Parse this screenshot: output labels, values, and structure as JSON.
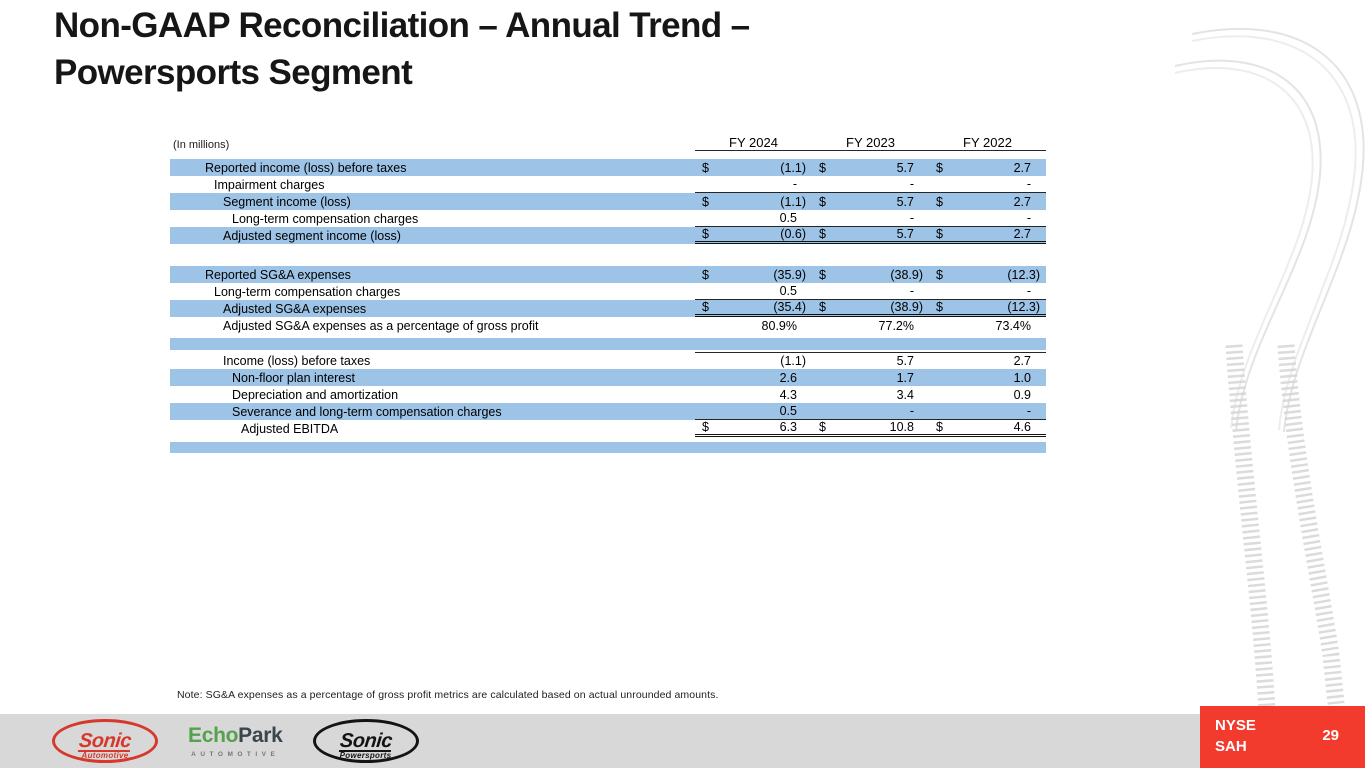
{
  "title": {
    "line1": "Non-GAAP Reconciliation – Annual Trend –",
    "line2": "Powersports Segment"
  },
  "table": {
    "units_label": "(In millions)",
    "columns": [
      "FY 2024",
      "FY 2023",
      "FY 2022"
    ],
    "dollar_sign": "$",
    "rows": [
      {
        "label": "Reported income (loss) before taxes",
        "indent": 0,
        "highlight": true,
        "dollar": true,
        "values": [
          "(1.1)",
          "5.7",
          "2.7"
        ]
      },
      {
        "label": "Impairment charges",
        "indent": 1,
        "highlight": false,
        "dollar": false,
        "values": [
          "-",
          "-",
          "-"
        ],
        "border_bottom": "single"
      },
      {
        "label": "Segment income (loss)",
        "indent": 2,
        "highlight": true,
        "dollar": true,
        "values": [
          "(1.1)",
          "5.7",
          "2.7"
        ]
      },
      {
        "label": "Long-term compensation charges",
        "indent": 3,
        "highlight": false,
        "dollar": false,
        "values": [
          "0.5",
          "-",
          "-"
        ],
        "border_bottom": "single"
      },
      {
        "label": "Adjusted segment income (loss)",
        "indent": 2,
        "highlight": true,
        "dollar": true,
        "values": [
          "(0.6)",
          "5.7",
          "2.7"
        ],
        "border_bottom": "double"
      },
      {
        "type": "spacer"
      },
      {
        "label": "Reported SG&A expenses",
        "indent": 0,
        "highlight": true,
        "dollar": true,
        "values": [
          "(35.9)",
          "(38.9)",
          "(12.3)"
        ]
      },
      {
        "label": "Long-term compensation charges",
        "indent": 1,
        "highlight": false,
        "dollar": false,
        "values": [
          "0.5",
          "-",
          "-"
        ],
        "border_bottom": "single"
      },
      {
        "label": "Adjusted SG&A expenses",
        "indent": 2,
        "highlight": true,
        "dollar": true,
        "values": [
          "(35.4)",
          "(38.9)",
          "(12.3)"
        ],
        "border_bottom": "double"
      },
      {
        "label": "Adjusted SG&A expenses as a percentage of gross profit",
        "indent": 2,
        "highlight": false,
        "dollar": false,
        "values": [
          "80.9%",
          "77.2%",
          "73.4%"
        ]
      },
      {
        "type": "blank",
        "highlight": true
      },
      {
        "label": "Income (loss) before taxes",
        "indent": 2,
        "highlight": false,
        "dollar": false,
        "values": [
          "(1.1)",
          "5.7",
          "2.7"
        ],
        "border_top": "single"
      },
      {
        "label": "Non-floor plan interest",
        "indent": 3,
        "highlight": true,
        "dollar": false,
        "values": [
          "2.6",
          "1.7",
          "1.0"
        ]
      },
      {
        "label": "Depreciation and amortization",
        "indent": 3,
        "highlight": false,
        "dollar": false,
        "values": [
          "4.3",
          "3.4",
          "0.9"
        ]
      },
      {
        "label": "Severance and long-term compensation charges",
        "indent": 3,
        "highlight": true,
        "dollar": false,
        "values": [
          "0.5",
          "-",
          "-"
        ],
        "border_bottom": "single"
      },
      {
        "label": "Adjusted EBITDA",
        "indent": 4,
        "highlight": false,
        "dollar": true,
        "values": [
          "6.3",
          "10.8",
          "4.6"
        ],
        "border_bottom": "double"
      },
      {
        "type": "blank",
        "highlight": true,
        "variant": "last"
      }
    ]
  },
  "note": "Note: SG&A expenses as a percentage of gross profit metrics are calculated based on actual unrounded amounts.",
  "footer": {
    "logos": {
      "sonic_automotive": {
        "word": "Sonic",
        "sub": "Automotive"
      },
      "echopark": {
        "word_green": "Echo",
        "word_dark": "Park",
        "sub": "AUTOMOTIVE"
      },
      "sonic_powersports": {
        "word": "Sonic",
        "sub": "Powersports"
      }
    },
    "ticker": {
      "line1": "NYSE",
      "line2": "SAH"
    },
    "page_number": "29"
  },
  "colors": {
    "row_highlight": "#9DC3E6",
    "accent_red": "#F23B2C",
    "footer_gray": "#D8D8D8",
    "sonic_red": "#D6382B",
    "echo_green": "#54A14E",
    "echo_dark": "#3B454C"
  }
}
